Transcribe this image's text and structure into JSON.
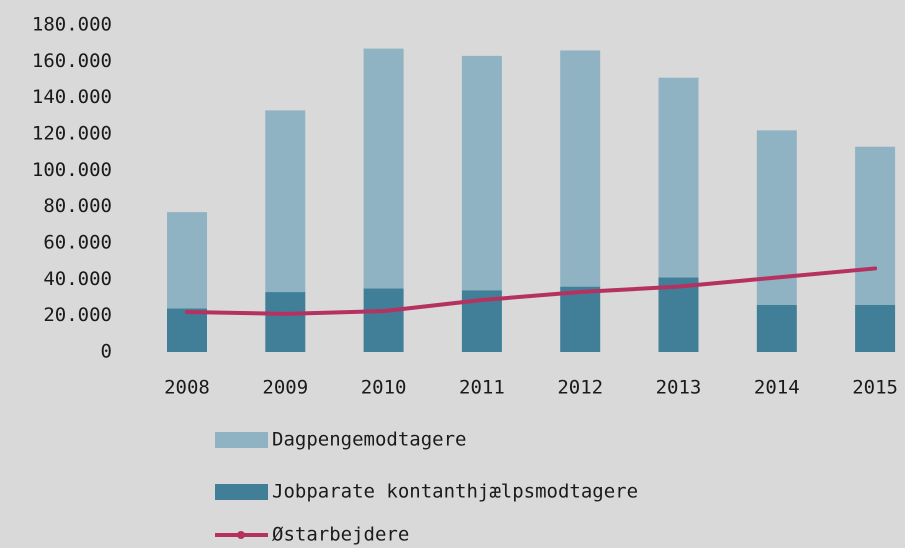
{
  "chart_data": {
    "type": "bar",
    "categories": [
      "2008",
      "2009",
      "2010",
      "2011",
      "2012",
      "2013",
      "2014",
      "2015"
    ],
    "series": [
      {
        "name": "Dagpengemodtagere",
        "type": "bar",
        "color": "#8fb3c2",
        "values": [
          53000,
          100000,
          132000,
          129000,
          130000,
          110000,
          96000,
          87000
        ]
      },
      {
        "name": "Jobparate kontanthjælpsmodtagere",
        "type": "bar",
        "color": "#417f98",
        "values": [
          24000,
          33000,
          35000,
          34000,
          36000,
          41000,
          26000,
          26000
        ]
      },
      {
        "name": "Østarbejdere",
        "type": "line",
        "color": "#b5315f",
        "values": [
          22000,
          21000,
          22500,
          28600,
          33000,
          36000,
          41000,
          46000
        ]
      }
    ],
    "stacked": true,
    "ylim": [
      0,
      180000
    ],
    "yticks": [
      0,
      {
        "value": 20000,
        "label": "20.000"
      },
      {
        "value": 40000,
        "label": "40.000"
      },
      {
        "value": 60000,
        "label": "60.000"
      },
      {
        "value": 80000,
        "label": "80.000"
      },
      {
        "value": 100000,
        "label": "100.000"
      },
      {
        "value": 120000,
        "label": "120.000"
      },
      {
        "value": 140000,
        "label": "140.000"
      },
      {
        "value": 160000,
        "label": "160.000"
      },
      {
        "value": 180000,
        "label": "180.000"
      }
    ],
    "grid": false,
    "legend": "bottom"
  }
}
